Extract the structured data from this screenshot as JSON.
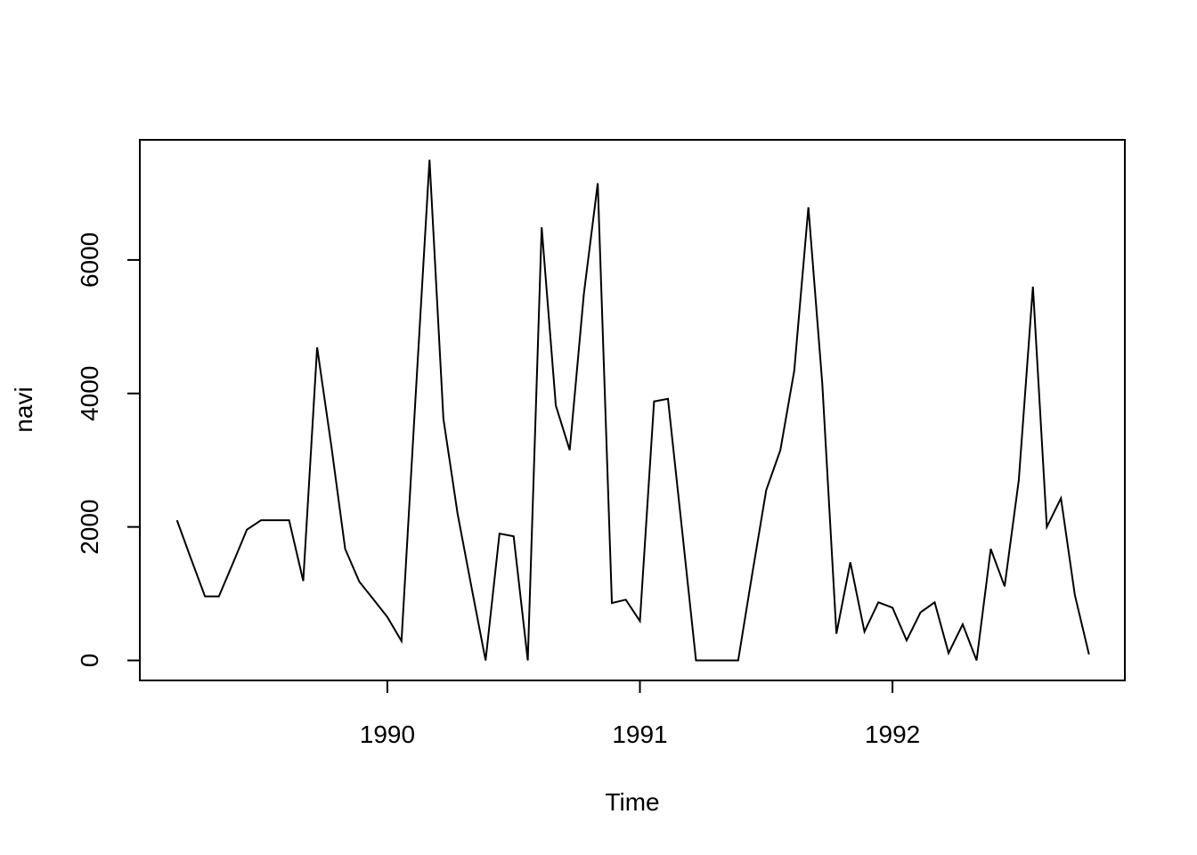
{
  "chart_data": {
    "type": "line",
    "xlabel": "Time",
    "ylabel": "navi",
    "x": [
      1989.167,
      1989.222,
      1989.278,
      1989.333,
      1989.389,
      1989.444,
      1989.5,
      1989.556,
      1989.611,
      1989.667,
      1989.722,
      1989.778,
      1989.833,
      1989.889,
      1989.944,
      1990,
      1990.056,
      1990.111,
      1990.167,
      1990.222,
      1990.278,
      1990.333,
      1990.389,
      1990.444,
      1990.5,
      1990.556,
      1990.611,
      1990.667,
      1990.722,
      1990.778,
      1990.833,
      1990.889,
      1990.944,
      1991,
      1991.056,
      1991.111,
      1991.167,
      1991.222,
      1991.278,
      1991.333,
      1991.389,
      1991.444,
      1991.5,
      1991.556,
      1991.611,
      1991.667,
      1991.722,
      1991.778,
      1991.833,
      1991.889,
      1991.944,
      1992,
      1992.056,
      1992.111,
      1992.167,
      1992.222,
      1992.278,
      1992.333,
      1992.389,
      1992.444,
      1992.5,
      1992.556,
      1992.611,
      1992.667,
      1992.722,
      1992.778
    ],
    "series": [
      {
        "color": "#000000",
        "values": [
          2100,
          1530,
          960,
          960,
          1460,
          1960,
          2100,
          2100,
          2100,
          1190,
          4690,
          3220,
          1670,
          1180,
          920,
          650,
          290,
          3900,
          7500,
          3620,
          2200,
          1100,
          0,
          1900,
          1860,
          0,
          6490,
          3820,
          3150,
          5490,
          7150,
          860,
          910,
          590,
          3880,
          3920,
          1950,
          0,
          0,
          0,
          0,
          1280,
          2550,
          3150,
          4340,
          6790,
          4150,
          400,
          1470,
          430,
          870,
          790,
          300,
          720,
          870,
          110,
          540,
          0,
          1670,
          1110,
          2700,
          5600,
          2000,
          2430,
          980,
          90
        ]
      }
    ],
    "xlim": [
      1989.02,
      1992.92
    ],
    "xticks": [
      1990,
      1991,
      1992
    ],
    "ylim": [
      -300,
      7800
    ],
    "yticks": [
      0,
      2000,
      4000,
      6000
    ]
  }
}
